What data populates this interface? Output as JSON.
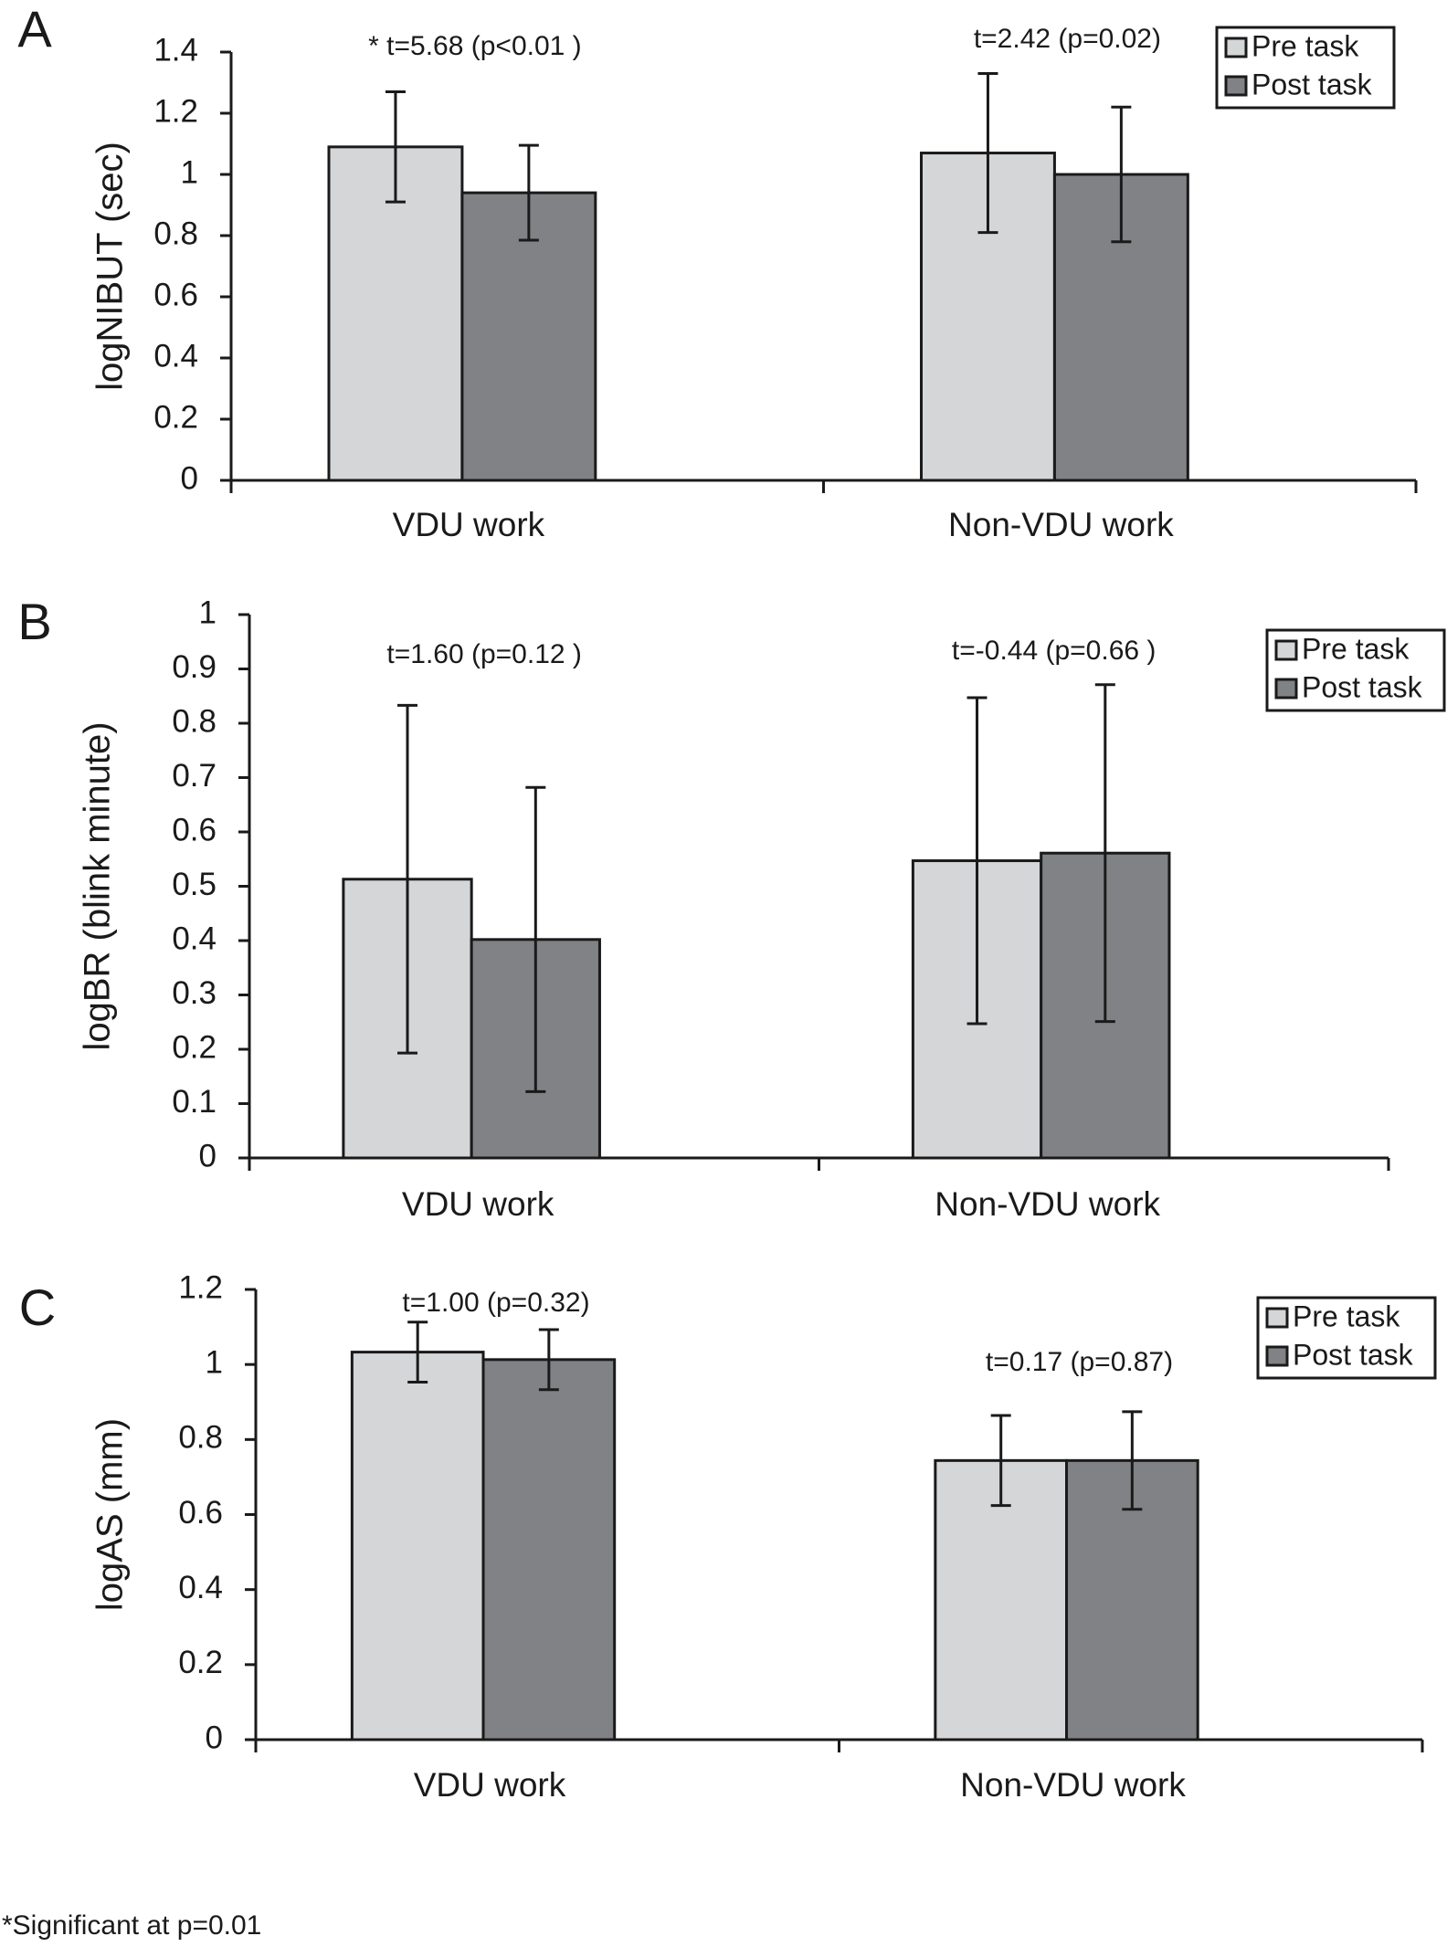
{
  "chart_data": [
    {
      "type": "bar",
      "panel": "A",
      "y_label": "logNIBUT (sec)",
      "categories": [
        "VDU work",
        "Non-VDU work"
      ],
      "series": [
        {
          "name": "Pre task",
          "color": "#d4d6d8",
          "values": [
            1.09,
            1.07
          ],
          "errors": [
            0.18,
            0.26
          ]
        },
        {
          "name": "Post task",
          "color": "#808285",
          "values": [
            0.94,
            1.0
          ],
          "errors": [
            0.155,
            0.22
          ]
        }
      ],
      "annotations": [
        "* t=5.68 (p<0.01 )",
        "t=2.42 (p=0.02)"
      ],
      "ylim": [
        0,
        1.4
      ],
      "yticks": [
        0,
        0.2,
        0.4,
        0.6,
        0.8,
        1,
        1.2,
        1.4
      ],
      "grid": false,
      "legend": "upper right"
    },
    {
      "type": "bar",
      "panel": "B",
      "y_label": "logBR (blink minute)",
      "categories": [
        "VDU work",
        "Non-VDU work"
      ],
      "series": [
        {
          "name": "Pre task",
          "color": "#d4d6d8",
          "values": [
            0.513,
            0.547
          ],
          "errors": [
            0.32,
            0.3
          ]
        },
        {
          "name": "Post task",
          "color": "#808285",
          "values": [
            0.402,
            0.561
          ],
          "errors": [
            0.28,
            0.31
          ]
        }
      ],
      "annotations": [
        "t=1.60 (p=0.12 )",
        "t=-0.44 (p=0.66 )"
      ],
      "ylim": [
        0,
        1
      ],
      "yticks": [
        0,
        0.1,
        0.2,
        0.3,
        0.4,
        0.5,
        0.6,
        0.7,
        0.8,
        0.9,
        1
      ],
      "grid": false,
      "legend": "upper right"
    },
    {
      "type": "bar",
      "panel": "C",
      "y_label": "logAS (mm)",
      "categories": [
        "VDU work",
        "Non-VDU work"
      ],
      "series": [
        {
          "name": "Pre task",
          "color": "#d4d6d8",
          "values": [
            1.033,
            0.744
          ],
          "errors": [
            0.08,
            0.12
          ]
        },
        {
          "name": "Post task",
          "color": "#808285",
          "values": [
            1.013,
            0.744
          ],
          "errors": [
            0.08,
            0.13
          ]
        }
      ],
      "annotations": [
        "t=1.00 (p=0.32)",
        "t=0.17 (p=0.87)"
      ],
      "ylim": [
        0,
        1.2
      ],
      "yticks": [
        0,
        0.2,
        0.4,
        0.6,
        0.8,
        1,
        1.2
      ],
      "grid": false,
      "legend": "upper right"
    }
  ],
  "footnote": "*Significant at p=0.01"
}
